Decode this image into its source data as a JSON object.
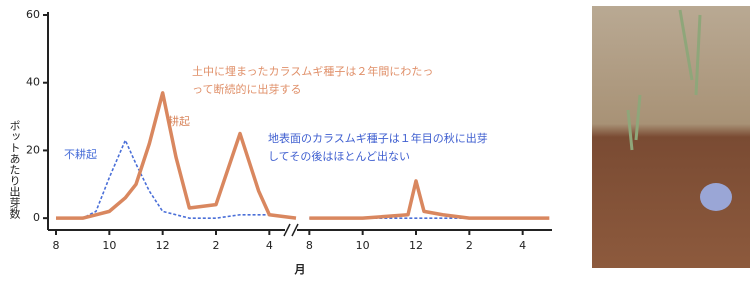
{
  "chart_data": {
    "type": "line",
    "y_label": "ポットあたり出芽数",
    "x_label": "月",
    "x": [
      0,
      1,
      1.5,
      2,
      2.6,
      3,
      3.5,
      4,
      4.5,
      5,
      6,
      6.9,
      7.6,
      8,
      9,
      9.2,
      9.5,
      11.5,
      13.2,
      13.5,
      13.8,
      14.5,
      15.5,
      17.5,
      18.5
    ],
    "series": [
      {
        "name": "不耕起",
        "color": "#4a6fd8",
        "dashed": true,
        "values": [
          0,
          0,
          2,
          12,
          23,
          16,
          8,
          2,
          1,
          0,
          0,
          1,
          1,
          1,
          0,
          null,
          0,
          0,
          0,
          0,
          0,
          0,
          0,
          0,
          0
        ]
      },
      {
        "name": "耕起",
        "color": "#d9875f",
        "dashed": false,
        "values": [
          0,
          0,
          1,
          2,
          6,
          10,
          22,
          37,
          18,
          3,
          4,
          25,
          8,
          1,
          0,
          null,
          0,
          0,
          1,
          11,
          2,
          1,
          0,
          0,
          0
        ]
      }
    ],
    "annotations": [
      {
        "color": "#e0906a",
        "lines": [
          "土中に埋まったカラスムギ種子は２年間にわたっ",
          "って断続的に出芽する"
        ]
      },
      {
        "color": "#3f5fd0",
        "lines": [
          "地表面のカラスムギ種子は１年目の秋に出芽",
          "してその後はほとんど出ない"
        ]
      }
    ],
    "xlim": [
      -0.3,
      18.6
    ],
    "xticks": [
      {
        "value": 0,
        "label": "8"
      },
      {
        "value": 2,
        "label": "10"
      },
      {
        "value": 4,
        "label": "12"
      },
      {
        "value": 6,
        "label": "2"
      },
      {
        "value": 8,
        "label": "4"
      },
      {
        "value": 9.5,
        "label": "8"
      },
      {
        "value": 11.5,
        "label": "10"
      },
      {
        "value": 13.5,
        "label": "12"
      },
      {
        "value": 15.5,
        "label": "2"
      },
      {
        "value": 17.5,
        "label": "4"
      }
    ],
    "ylim": [
      -3.5,
      60
    ],
    "yticks": [
      0,
      20,
      40,
      60
    ]
  }
}
